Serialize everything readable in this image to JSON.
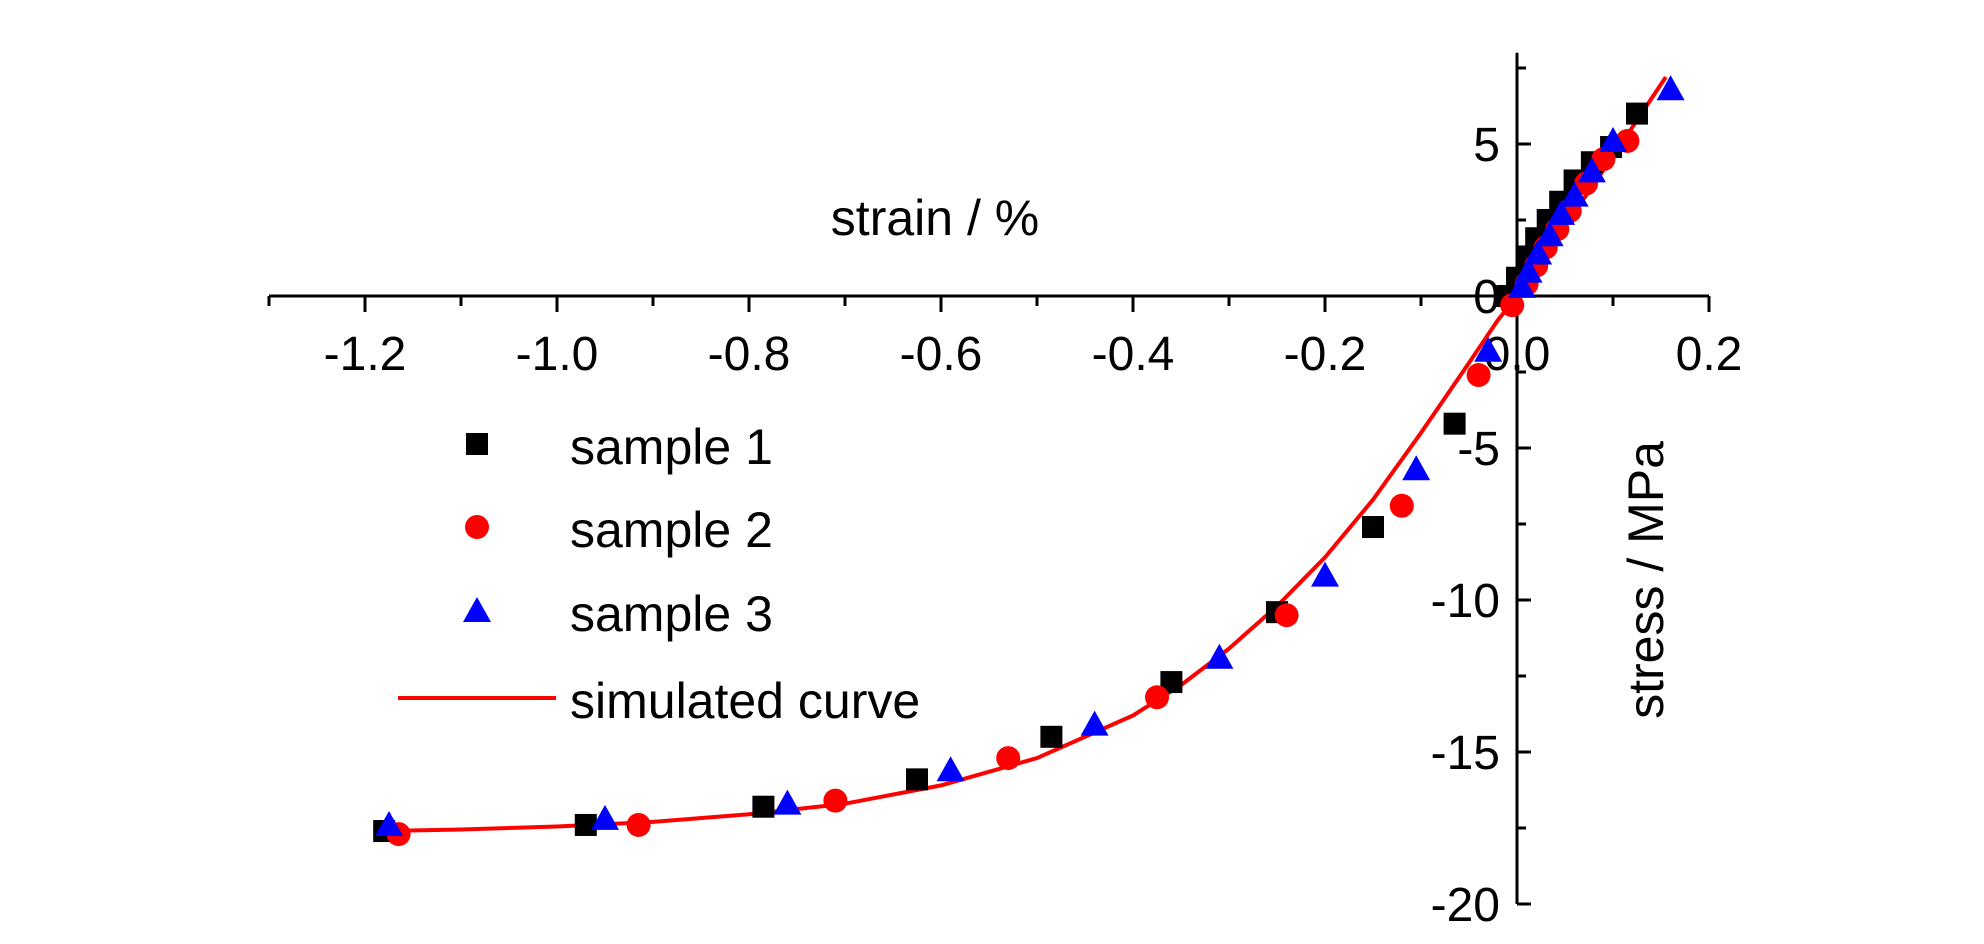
{
  "chart_data": {
    "type": "scatter",
    "title": "",
    "xlabel": "strain / %",
    "ylabel": "stress / MPa",
    "xlim": [
      -1.3,
      0.2
    ],
    "ylim": [
      -20,
      8
    ],
    "x_ticks": [
      -1.2,
      -1.0,
      -0.8,
      -0.6,
      -0.4,
      -0.2,
      0.0,
      0.2
    ],
    "x_tick_labels": [
      "-1.2",
      "-1.0",
      "-0.8",
      "-0.6",
      "-0.4",
      "-0.2",
      "0.0",
      "0.2"
    ],
    "y_ticks": [
      -20,
      -15,
      -10,
      -5,
      0,
      5
    ],
    "y_tick_labels": [
      "-20",
      "-15",
      "-10",
      "-5",
      "0",
      "5"
    ],
    "legend_position": "left",
    "grid": false,
    "series": [
      {
        "name": "sample 1",
        "marker": "square",
        "color": "#000000",
        "points": [
          [
            -1.18,
            -17.6
          ],
          [
            -0.97,
            -17.4
          ],
          [
            -0.785,
            -16.8
          ],
          [
            -0.625,
            -15.9
          ],
          [
            -0.485,
            -14.5
          ],
          [
            -0.36,
            -12.7
          ],
          [
            -0.25,
            -10.4
          ],
          [
            -0.15,
            -7.6
          ],
          [
            -0.065,
            -4.2
          ],
          [
            -0.01,
            0.0
          ],
          [
            0.0,
            0.6
          ],
          [
            0.01,
            1.3
          ],
          [
            0.02,
            1.9
          ],
          [
            0.032,
            2.5
          ],
          [
            0.045,
            3.1
          ],
          [
            0.06,
            3.8
          ],
          [
            0.078,
            4.4
          ],
          [
            0.098,
            4.9
          ],
          [
            0.125,
            6.0
          ]
        ]
      },
      {
        "name": "sample 2",
        "marker": "circle",
        "color": "#ff0000",
        "points": [
          [
            -1.165,
            -17.7
          ],
          [
            -0.915,
            -17.4
          ],
          [
            -0.71,
            -16.6
          ],
          [
            -0.53,
            -15.2
          ],
          [
            -0.375,
            -13.2
          ],
          [
            -0.24,
            -10.5
          ],
          [
            -0.12,
            -6.9
          ],
          [
            -0.04,
            -2.6
          ],
          [
            -0.005,
            -0.3
          ],
          [
            0.01,
            0.4
          ],
          [
            0.02,
            1.0
          ],
          [
            0.03,
            1.6
          ],
          [
            0.042,
            2.2
          ],
          [
            0.055,
            2.8
          ],
          [
            0.072,
            3.7
          ],
          [
            0.09,
            4.5
          ],
          [
            0.115,
            5.1
          ]
        ]
      },
      {
        "name": "sample 3",
        "marker": "triangle",
        "color": "#0000ff",
        "points": [
          [
            -1.175,
            -17.4
          ],
          [
            -0.95,
            -17.2
          ],
          [
            -0.76,
            -16.7
          ],
          [
            -0.59,
            -15.6
          ],
          [
            -0.44,
            -14.1
          ],
          [
            -0.31,
            -11.9
          ],
          [
            -0.2,
            -9.2
          ],
          [
            -0.105,
            -5.7
          ],
          [
            -0.03,
            -1.8
          ],
          [
            0.005,
            0.3
          ],
          [
            0.012,
            0.8
          ],
          [
            0.022,
            1.4
          ],
          [
            0.034,
            2.0
          ],
          [
            0.046,
            2.7
          ],
          [
            0.06,
            3.3
          ],
          [
            0.078,
            4.1
          ],
          [
            0.1,
            5.1
          ],
          [
            0.16,
            6.8
          ]
        ]
      },
      {
        "name": "simulated curve",
        "marker": "line",
        "color": "#ff0000",
        "points": [
          [
            -1.18,
            -17.6
          ],
          [
            -1.1,
            -17.55
          ],
          [
            -1.0,
            -17.45
          ],
          [
            -0.9,
            -17.3
          ],
          [
            -0.8,
            -17.05
          ],
          [
            -0.7,
            -16.7
          ],
          [
            -0.6,
            -16.1
          ],
          [
            -0.5,
            -15.2
          ],
          [
            -0.4,
            -13.8
          ],
          [
            -0.35,
            -12.8
          ],
          [
            -0.3,
            -11.6
          ],
          [
            -0.25,
            -10.2
          ],
          [
            -0.2,
            -8.6
          ],
          [
            -0.15,
            -6.7
          ],
          [
            -0.1,
            -4.5
          ],
          [
            -0.05,
            -2.2
          ],
          [
            -0.02,
            -0.8
          ],
          [
            0.0,
            0.0
          ],
          [
            0.05,
            2.3
          ],
          [
            0.1,
            4.6
          ],
          [
            0.155,
            7.2
          ]
        ]
      }
    ]
  }
}
